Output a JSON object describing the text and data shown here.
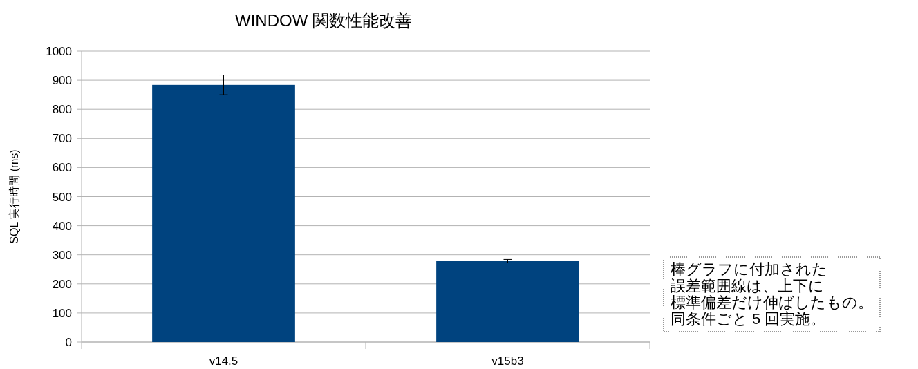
{
  "chart_data": {
    "type": "bar",
    "title": "WINDOW 関数性能改善",
    "ylabel": "SQL 実行時間 (ms)",
    "categories": [
      "v14.5",
      "v15b3"
    ],
    "series": [
      {
        "color": "#00437f",
        "values": [
          884,
          278
        ],
        "errors": [
          34,
          6
        ]
      }
    ],
    "ylim": [
      0,
      1000
    ],
    "yticks": [
      0,
      100,
      200,
      300,
      400,
      500,
      600,
      700,
      800,
      900,
      1000
    ],
    "grid": "y",
    "annotations": [
      "棒グラフに付加された",
      "誤差範囲線は、上下に",
      "標準偏差だけ伸ばしたもの。",
      "同条件ごと 5 回実施。"
    ]
  }
}
